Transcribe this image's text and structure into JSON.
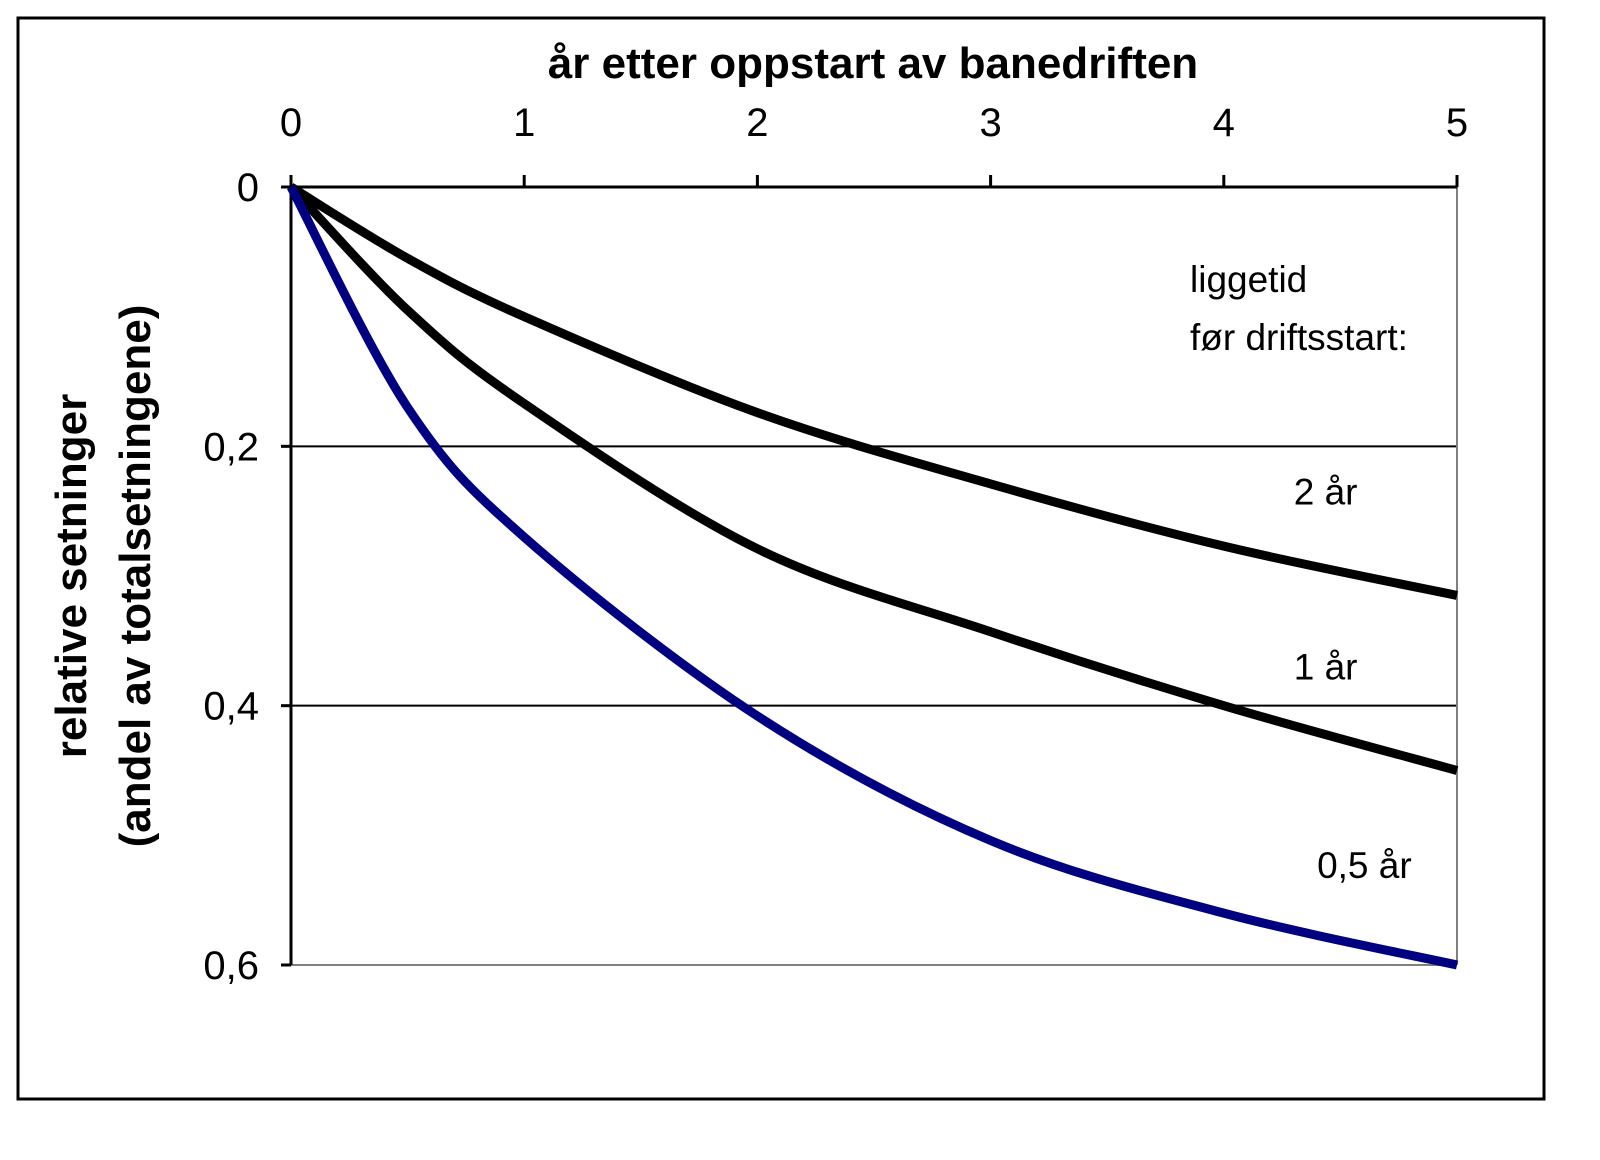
{
  "chart_data": {
    "type": "line",
    "title": "",
    "xlabel": "år etter oppstart av banedriften",
    "ylabel": "relative setninger",
    "ylabel_sub": "(andel av totalsetningene)",
    "x_axis_position": "top",
    "y_axis_inverted": true,
    "xlim": [
      0,
      5
    ],
    "ylim": [
      0,
      0.6
    ],
    "x_ticks": [
      "0",
      "1",
      "2",
      "3",
      "4",
      "5"
    ],
    "y_ticks": [
      "0",
      "0,2",
      "0,4",
      "0,6"
    ],
    "grid": "horizontal",
    "legend_title": [
      "liggetid",
      "før driftsstart:"
    ],
    "x": [
      0,
      0.5,
      1,
      2,
      3,
      4,
      5
    ],
    "series": [
      {
        "name": "2 år",
        "color": "#000000",
        "values": [
          0,
          0.055,
          0.1,
          0.174,
          0.229,
          0.277,
          0.315
        ]
      },
      {
        "name": "1 år",
        "color": "#000000",
        "values": [
          0,
          0.095,
          0.167,
          0.279,
          0.343,
          0.4,
          0.45
        ]
      },
      {
        "name": "0,5 år",
        "color": "#000080",
        "values": [
          0,
          0.17,
          0.27,
          0.408,
          0.504,
          0.56,
          0.6
        ]
      }
    ],
    "annotations": [
      {
        "text": "2 år",
        "x": 4.3,
        "y": 0.245
      },
      {
        "text": "1 år",
        "x": 4.3,
        "y": 0.38
      },
      {
        "text": "0,5 år",
        "x": 4.4,
        "y": 0.533
      }
    ]
  }
}
